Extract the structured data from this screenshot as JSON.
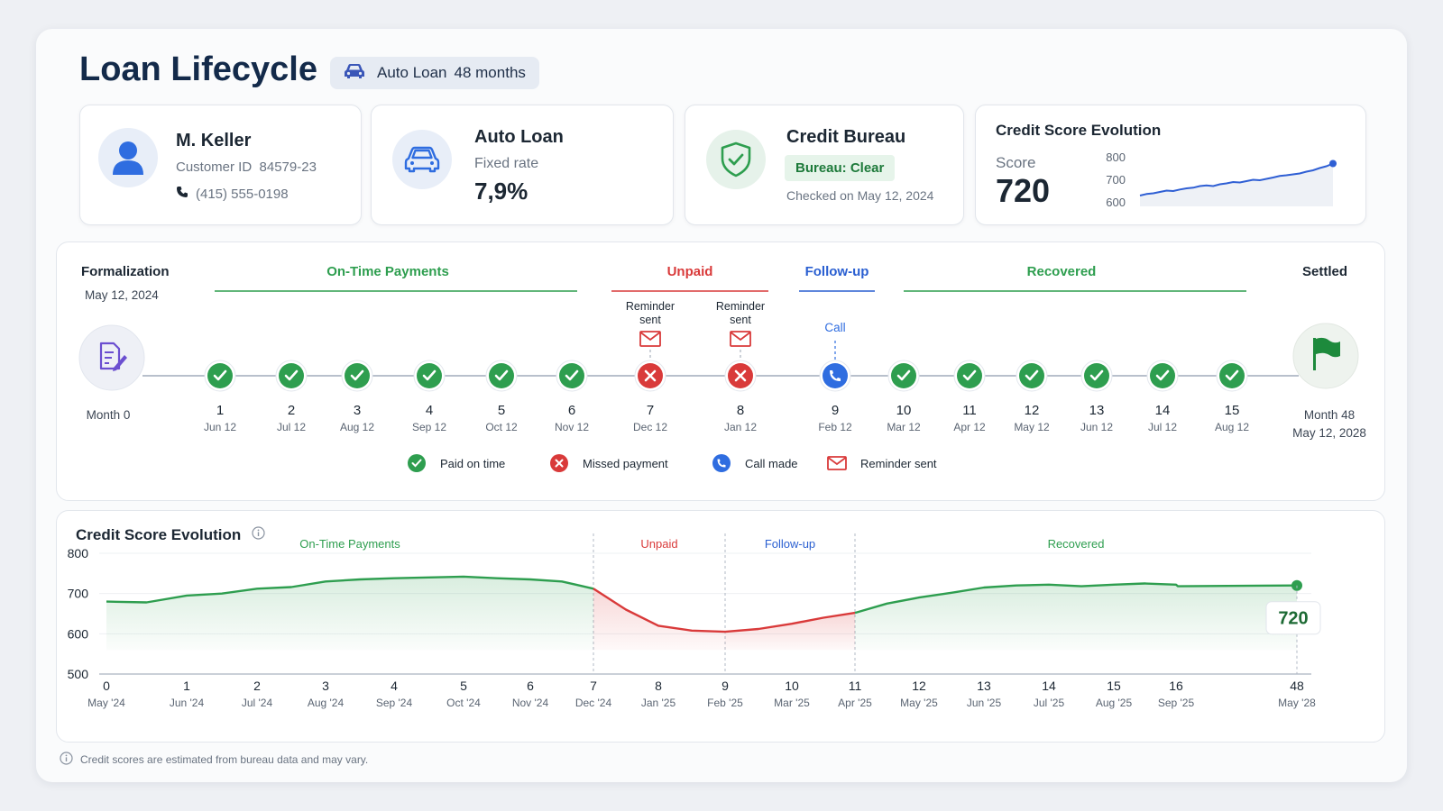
{
  "header": {
    "title": "Loan Lifecycle",
    "tag_label": "Auto Loan",
    "tag_term": "48 months"
  },
  "customer": {
    "name": "M. Keller",
    "id_label": "Customer ID",
    "id_value": "84579-23",
    "phone": "(415) 555-0198"
  },
  "loan": {
    "title": "Auto Loan",
    "rate_label": "Fixed rate",
    "rate_value": "7,9%"
  },
  "bureau": {
    "title": "Credit Bureau",
    "status": "Bureau: Clear",
    "checked": "Checked on May 12, 2024"
  },
  "score_card": {
    "title": "Credit Score Evolution",
    "label": "Score",
    "value": "720",
    "ticks": [
      "800",
      "700",
      "600"
    ],
    "spark": [
      648,
      655,
      658,
      664,
      670,
      668,
      675,
      680,
      683,
      690,
      693,
      690,
      698,
      702,
      708,
      706,
      712,
      718,
      716,
      722,
      728,
      735,
      738,
      742,
      746,
      754,
      760,
      770,
      778,
      790
    ]
  },
  "timeline": {
    "start": {
      "label": "Formalization",
      "date": "May 12, 2024",
      "month": "Month 0"
    },
    "end": {
      "label": "Settled",
      "month": "Month 48",
      "date": "May 12, 2028"
    },
    "phases": [
      {
        "label": "On-Time Payments",
        "color": "#2e9e4f"
      },
      {
        "label": "Unpaid",
        "color": "#d93a3a"
      },
      {
        "label": "Follow-up",
        "color": "#2a5fd1"
      },
      {
        "label": "Recovered",
        "color": "#2e9e4f"
      }
    ],
    "reminder_label": "Reminder sent",
    "call_label": "Call",
    "payments": [
      {
        "n": "1",
        "date": "Jun 12",
        "status": "paid"
      },
      {
        "n": "2",
        "date": "Jul 12",
        "status": "paid"
      },
      {
        "n": "3",
        "date": "Aug 12",
        "status": "paid"
      },
      {
        "n": "4",
        "date": "Sep 12",
        "status": "paid"
      },
      {
        "n": "5",
        "date": "Oct 12",
        "status": "paid"
      },
      {
        "n": "6",
        "date": "Nov 12",
        "status": "paid"
      },
      {
        "n": "7",
        "date": "Dec 12",
        "status": "missed"
      },
      {
        "n": "8",
        "date": "Jan 12",
        "status": "missed"
      },
      {
        "n": "9",
        "date": "Feb 12",
        "status": "call"
      },
      {
        "n": "10",
        "date": "Mar 12",
        "status": "paid"
      },
      {
        "n": "11",
        "date": "Apr 12",
        "status": "paid"
      },
      {
        "n": "12",
        "date": "May 12",
        "status": "paid"
      },
      {
        "n": "13",
        "date": "Jun 12",
        "status": "paid"
      },
      {
        "n": "14",
        "date": "Jul 12",
        "status": "paid"
      },
      {
        "n": "15",
        "date": "Aug 12",
        "status": "paid"
      }
    ],
    "legend": [
      {
        "label": "Paid on time",
        "icon": "check-circle-icon"
      },
      {
        "label": "Missed payment",
        "icon": "x-circle-icon"
      },
      {
        "label": "Call made",
        "icon": "phone-icon"
      },
      {
        "label": "Reminder sent",
        "icon": "envelope-icon"
      }
    ]
  },
  "chart_data": {
    "type": "area",
    "title": "Credit Score Evolution",
    "y_ticks": [
      800,
      700,
      600,
      500
    ],
    "ylim": [
      500,
      800
    ],
    "x_ticks": [
      {
        "month": "0",
        "date": "May '24"
      },
      {
        "month": "1",
        "date": "Jun '24"
      },
      {
        "month": "2",
        "date": "Jul '24"
      },
      {
        "month": "3",
        "date": "Aug '24"
      },
      {
        "month": "4",
        "date": "Sep '24"
      },
      {
        "month": "5",
        "date": "Oct '24"
      },
      {
        "month": "6",
        "date": "Nov '24"
      },
      {
        "month": "7",
        "date": "Dec '24"
      },
      {
        "month": "8",
        "date": "Jan '25"
      },
      {
        "month": "9",
        "date": "Feb '25"
      },
      {
        "month": "10",
        "date": "Mar '25"
      },
      {
        "month": "11",
        "date": "Apr '25"
      },
      {
        "month": "12",
        "date": "May '25"
      },
      {
        "month": "13",
        "date": "Jun '25"
      },
      {
        "month": "14",
        "date": "Jul '25"
      },
      {
        "month": "15",
        "date": "Aug '25"
      },
      {
        "month": "16",
        "date": "Sep '25"
      },
      {
        "month": "48",
        "date": "May '28"
      }
    ],
    "phases": [
      {
        "label": "On-Time Payments",
        "color": "#2e9e4f"
      },
      {
        "label": "Unpaid",
        "color": "#d93a3a"
      },
      {
        "label": "Follow-up",
        "color": "#2a5fd1"
      },
      {
        "label": "Recovered",
        "color": "#2e9e4f"
      }
    ],
    "series": [
      {
        "x": [
          0,
          0.5,
          1,
          1.5,
          2,
          2.5,
          3,
          3.5,
          4,
          4.5,
          5,
          5.5,
          6,
          6.5,
          7
        ],
        "y": [
          680,
          678,
          695,
          700,
          712,
          716,
          730,
          735,
          738,
          740,
          742,
          738,
          735,
          730,
          712
        ],
        "color": "#2e9e4f"
      },
      {
        "x": [
          7,
          7.5,
          8,
          8.5,
          9
        ],
        "y": [
          712,
          660,
          620,
          608,
          605
        ],
        "color": "#d93a3a"
      },
      {
        "x": [
          9,
          9.5,
          10,
          10.5,
          11
        ],
        "y": [
          605,
          612,
          625,
          640,
          652
        ],
        "color": "#d93a3a"
      },
      {
        "x": [
          11,
          11.5,
          12,
          12.5,
          13,
          13.5,
          14,
          14.5,
          15,
          15.5,
          16,
          16.5,
          48
        ],
        "y": [
          652,
          675,
          690,
          702,
          715,
          720,
          722,
          718,
          722,
          725,
          722,
          718,
          720
        ],
        "color": "#2e9e4f"
      }
    ],
    "end_value": "720"
  },
  "footnote": "Credit scores are estimated from bureau data and may vary."
}
